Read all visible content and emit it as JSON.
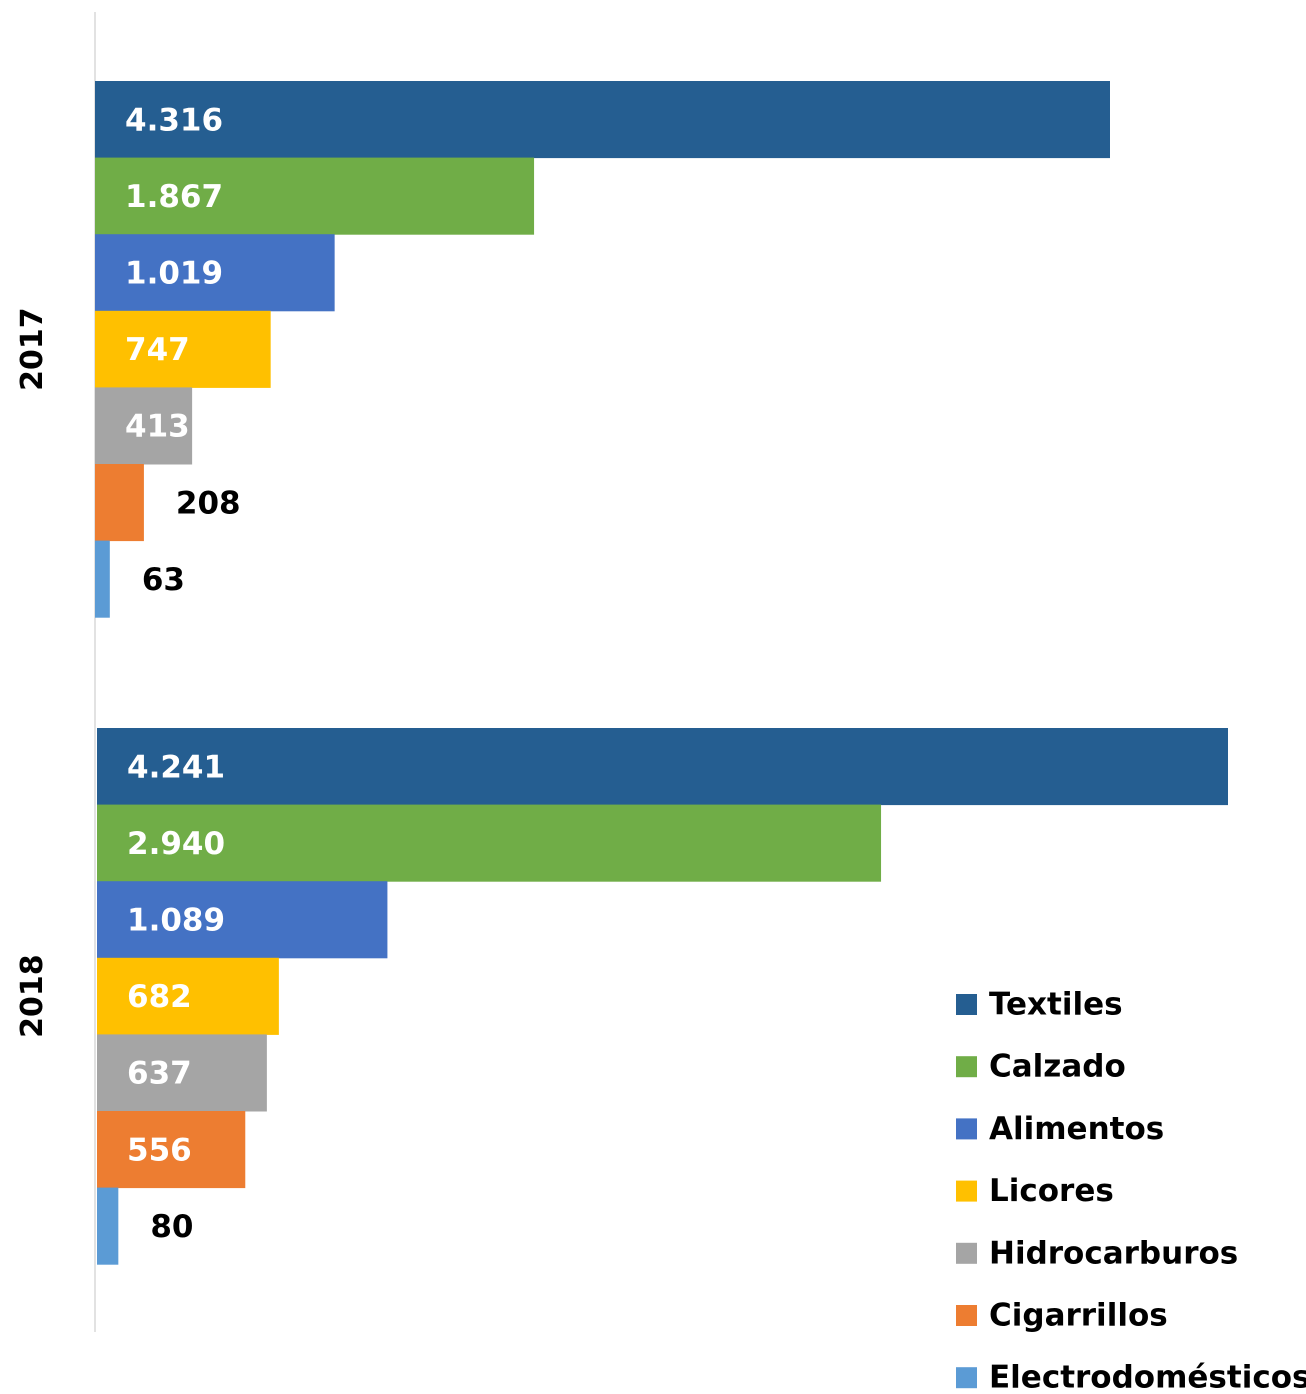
{
  "chart_data": {
    "type": "bar",
    "orientation": "horizontal",
    "grid": false,
    "legend_position": "bottom-right",
    "number_format": "es",
    "categories": [
      "2017",
      "2018"
    ],
    "series": [
      {
        "name": "Textiles",
        "color": "#255E91",
        "values": [
          4316,
          4241
        ],
        "labels": [
          "4.316",
          "4.241"
        ]
      },
      {
        "name": "Calzado",
        "color": "#70AD47",
        "values": [
          1867,
          2940
        ],
        "labels": [
          "1.867",
          "2.940"
        ]
      },
      {
        "name": "Alimentos",
        "color": "#4472C4",
        "values": [
          1019,
          1089
        ],
        "labels": [
          "1.019",
          "1.089"
        ]
      },
      {
        "name": "Licores",
        "color": "#FFC000",
        "values": [
          747,
          682
        ],
        "labels": [
          "747",
          "682"
        ]
      },
      {
        "name": "Hidrocarburos",
        "color": "#A5A5A5",
        "values": [
          413,
          637
        ],
        "labels": [
          "413",
          "637"
        ]
      },
      {
        "name": "Cigarrillos",
        "color": "#ED7D31",
        "values": [
          208,
          556
        ],
        "labels": [
          "208",
          "556"
        ]
      },
      {
        "name": "Electrodomésticos",
        "color": "#5B9BD5",
        "values": [
          63,
          80
        ],
        "labels": [
          "63",
          "80"
        ]
      }
    ],
    "title": "",
    "xlabel": "",
    "ylabel": ""
  }
}
